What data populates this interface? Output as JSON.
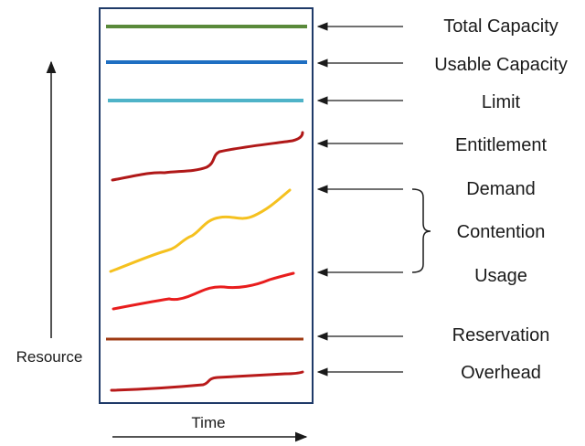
{
  "labels": {
    "total_capacity": "Total Capacity",
    "usable_capacity": "Usable Capacity",
    "limit": "Limit",
    "entitlement": "Entitlement",
    "demand": "Demand",
    "contention": "Contention",
    "usage": "Usage",
    "reservation": "Reservation",
    "overhead": "Overhead",
    "y_axis": "Resource",
    "x_axis": "Time"
  },
  "colors": {
    "box_border": "#1f3a68",
    "total_capacity": "#5a8a3a",
    "usable_capacity": "#1f6fc2",
    "limit": "#4fb3c8",
    "entitlement": "#b01818",
    "demand": "#f5c11f",
    "usage": "#e81d1d",
    "reservation": "#9e3a12",
    "overhead": "#b81a1a",
    "arrows": "#1a1a1a"
  }
}
